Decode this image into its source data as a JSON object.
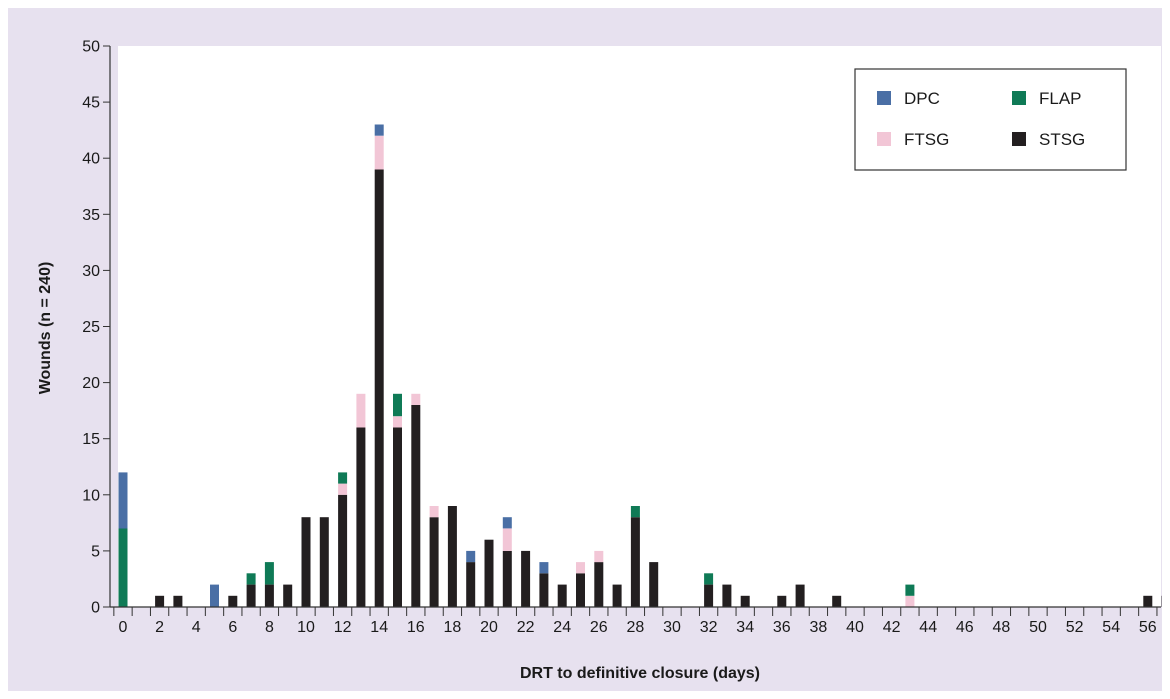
{
  "chart_data": {
    "type": "bar",
    "stacked": true,
    "title": "",
    "xlabel": "DRT to definitive closure (days)",
    "ylabel": "Wounds (n = 240)",
    "ylim": [
      0,
      50
    ],
    "yticks": [
      0,
      5,
      10,
      15,
      20,
      25,
      30,
      35,
      40,
      45,
      50
    ],
    "xlim": [
      0,
      57
    ],
    "xtick_labels": [
      0,
      2,
      4,
      6,
      8,
      10,
      12,
      14,
      16,
      18,
      20,
      22,
      24,
      26,
      28,
      30,
      32,
      34,
      36,
      38,
      40,
      42,
      44,
      46,
      48,
      50,
      52,
      54,
      56
    ],
    "grid": false,
    "legend_position": "top-right",
    "legend_order": [
      "DPC",
      "FLAP",
      "FTSG",
      "STSG"
    ],
    "series": [
      {
        "name": "STSG",
        "color": "#231f20",
        "points": [
          [
            2,
            1
          ],
          [
            3,
            1
          ],
          [
            6,
            1
          ],
          [
            7,
            2
          ],
          [
            8,
            2
          ],
          [
            9,
            2
          ],
          [
            10,
            8
          ],
          [
            11,
            8
          ],
          [
            12,
            10
          ],
          [
            13,
            16
          ],
          [
            14,
            39
          ],
          [
            15,
            16
          ],
          [
            16,
            18
          ],
          [
            17,
            8
          ],
          [
            18,
            9
          ],
          [
            19,
            4
          ],
          [
            20,
            6
          ],
          [
            21,
            5
          ],
          [
            22,
            5
          ],
          [
            23,
            3
          ],
          [
            24,
            2
          ],
          [
            25,
            3
          ],
          [
            26,
            4
          ],
          [
            27,
            2
          ],
          [
            28,
            8
          ],
          [
            29,
            4
          ],
          [
            32,
            2
          ],
          [
            33,
            2
          ],
          [
            34,
            1
          ],
          [
            36,
            1
          ],
          [
            37,
            2
          ],
          [
            39,
            1
          ],
          [
            56,
            1
          ],
          [
            57,
            1
          ]
        ]
      },
      {
        "name": "FTSG",
        "color": "#f2c6d6",
        "points": [
          [
            12,
            1
          ],
          [
            13,
            3
          ],
          [
            14,
            3
          ],
          [
            15,
            1
          ],
          [
            16,
            1
          ],
          [
            17,
            1
          ],
          [
            21,
            2
          ],
          [
            25,
            1
          ],
          [
            26,
            1
          ],
          [
            43,
            1
          ]
        ]
      },
      {
        "name": "FLAP",
        "color": "#0f7a56",
        "points": [
          [
            0,
            7
          ],
          [
            7,
            1
          ],
          [
            8,
            2
          ],
          [
            12,
            1
          ],
          [
            15,
            2
          ],
          [
            28,
            1
          ],
          [
            32,
            1
          ],
          [
            43,
            1
          ]
        ]
      },
      {
        "name": "DPC",
        "color": "#4a6fa5",
        "points": [
          [
            0,
            5
          ],
          [
            5,
            2
          ],
          [
            14,
            1
          ],
          [
            19,
            1
          ],
          [
            21,
            1
          ],
          [
            23,
            1
          ]
        ]
      }
    ]
  }
}
